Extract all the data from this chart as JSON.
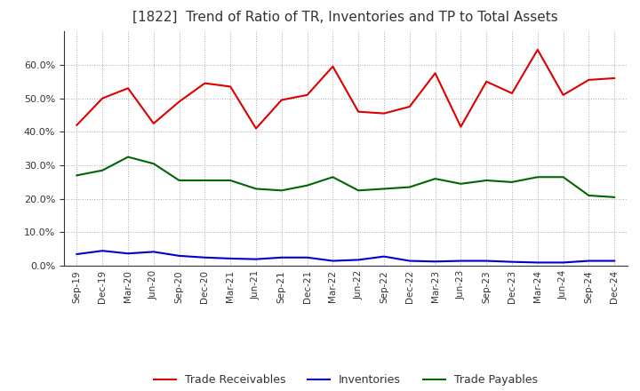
{
  "title": "[1822]  Trend of Ratio of TR, Inventories and TP to Total Assets",
  "labels": [
    "Sep-19",
    "Dec-19",
    "Mar-20",
    "Jun-20",
    "Sep-20",
    "Dec-20",
    "Mar-21",
    "Jun-21",
    "Sep-21",
    "Dec-21",
    "Mar-22",
    "Jun-22",
    "Sep-22",
    "Dec-22",
    "Mar-23",
    "Jun-23",
    "Sep-23",
    "Dec-23",
    "Mar-24",
    "Jun-24",
    "Sep-24",
    "Dec-24"
  ],
  "trade_receivables": [
    0.42,
    0.5,
    0.53,
    0.425,
    0.49,
    0.545,
    0.535,
    0.41,
    0.495,
    0.51,
    0.595,
    0.46,
    0.455,
    0.475,
    0.575,
    0.415,
    0.55,
    0.515,
    0.645,
    0.51,
    0.555,
    0.56
  ],
  "inventories": [
    0.035,
    0.045,
    0.037,
    0.042,
    0.03,
    0.025,
    0.022,
    0.02,
    0.025,
    0.025,
    0.015,
    0.018,
    0.028,
    0.015,
    0.013,
    0.015,
    0.015,
    0.012,
    0.01,
    0.01,
    0.015,
    0.015
  ],
  "trade_payables": [
    0.27,
    0.285,
    0.325,
    0.305,
    0.255,
    0.255,
    0.255,
    0.23,
    0.225,
    0.24,
    0.265,
    0.225,
    0.23,
    0.235,
    0.26,
    0.245,
    0.255,
    0.25,
    0.265,
    0.265,
    0.21,
    0.205
  ],
  "tr_color": "#dd0000",
  "inv_color": "#0000cc",
  "tp_color": "#006600",
  "ylim": [
    0.0,
    0.7
  ],
  "yticks": [
    0.0,
    0.1,
    0.2,
    0.3,
    0.4,
    0.5,
    0.6
  ],
  "bg_color": "#ffffff",
  "grid_color": "#aaaaaa",
  "line_width": 1.5,
  "title_color": "#333333"
}
